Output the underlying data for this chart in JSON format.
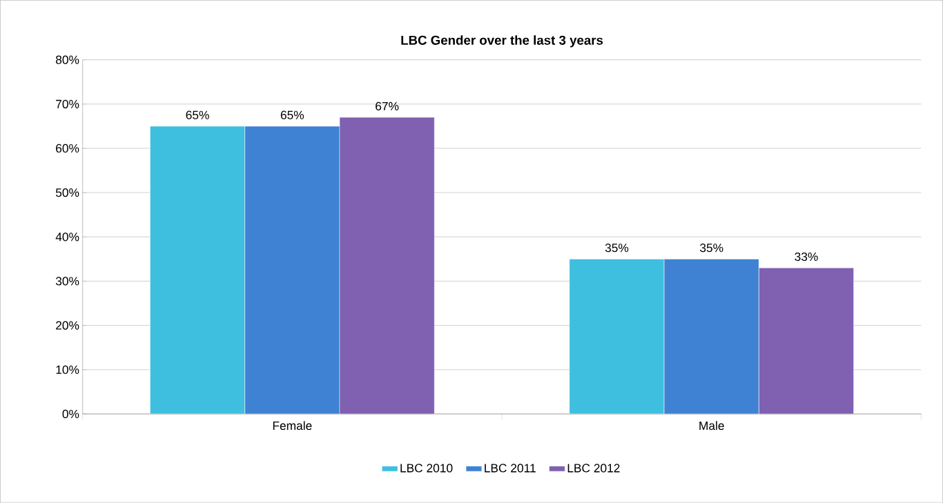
{
  "chart_data": {
    "type": "bar",
    "title": "LBC Gender over the last 3 years",
    "categories": [
      "Female",
      "Male"
    ],
    "series": [
      {
        "name": "LBC 2010",
        "color": "#3fbfdf",
        "values": [
          65,
          35
        ],
        "value_labels": [
          "65%",
          "35%"
        ]
      },
      {
        "name": "LBC 2011",
        "color": "#3f82d4",
        "values": [
          65,
          35
        ],
        "value_labels": [
          "65%",
          "35%"
        ]
      },
      {
        "name": "LBC 2012",
        "color": "#8060b0",
        "values": [
          67,
          33
        ],
        "value_labels": [
          "67%",
          "33%"
        ]
      }
    ],
    "ylim": [
      0,
      80
    ],
    "yticks": [
      {
        "value": 0,
        "label": "0%"
      },
      {
        "value": 10,
        "label": "10%"
      },
      {
        "value": 20,
        "label": "20%"
      },
      {
        "value": 30,
        "label": "30%"
      },
      {
        "value": 40,
        "label": "40%"
      },
      {
        "value": 50,
        "label": "50%"
      },
      {
        "value": 60,
        "label": "60%"
      },
      {
        "value": 70,
        "label": "70%"
      },
      {
        "value": 80,
        "label": "80%"
      }
    ],
    "grid": "y",
    "legend": "bottom"
  }
}
